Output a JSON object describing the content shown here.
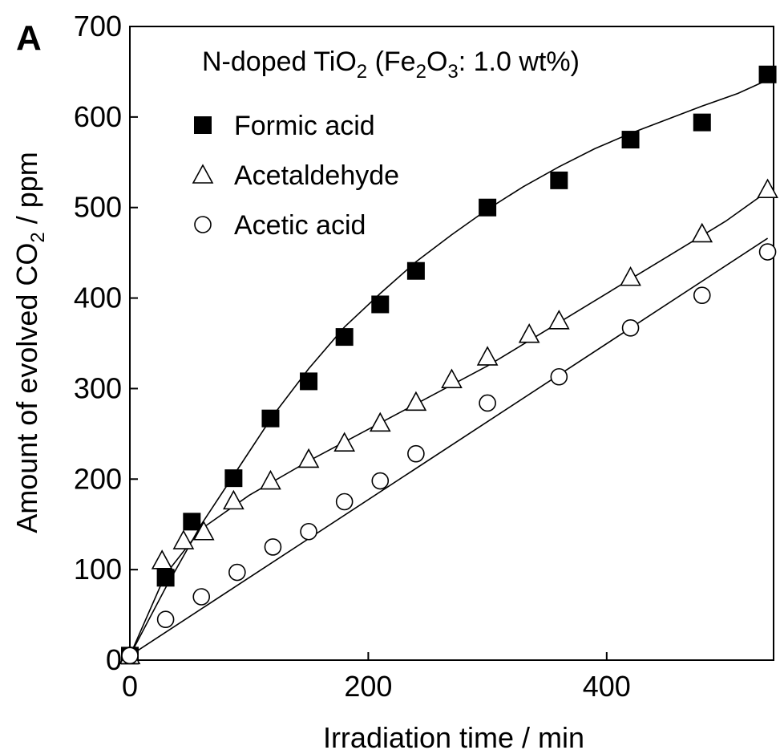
{
  "chart_data": {
    "type": "scatter",
    "panel_label": "A",
    "annotation": {
      "prefix": "N-doped TiO",
      "sub1": "2",
      "open": " (Fe",
      "sub2": "2",
      "mid": "O",
      "sub3": "3",
      "suffix": ": 1.0 wt%)"
    },
    "xlabel": "Irradiation time / min",
    "ylabel": {
      "prefix": "Amount of evolved CO",
      "sub": "2",
      "suffix": " / ppm"
    },
    "xlim": [
      0,
      540
    ],
    "ylim": [
      0,
      700
    ],
    "xticks": [
      0,
      200,
      400
    ],
    "yticks": [
      0,
      100,
      200,
      300,
      400,
      500,
      600,
      700
    ],
    "legend_position": "top-left",
    "grid": false,
    "series": [
      {
        "name": "Formic acid",
        "marker": "filled-square",
        "color": "#000000",
        "points": [
          [
            0,
            5
          ],
          [
            30,
            91
          ],
          [
            52,
            153
          ],
          [
            87,
            201
          ],
          [
            118,
            267
          ],
          [
            150,
            308
          ],
          [
            180,
            357
          ],
          [
            210,
            393
          ],
          [
            240,
            430
          ],
          [
            300,
            500
          ],
          [
            360,
            530
          ],
          [
            420,
            575
          ],
          [
            480,
            594
          ],
          [
            535,
            647
          ]
        ],
        "fit": [
          [
            0,
            5
          ],
          [
            30,
            80
          ],
          [
            60,
            150
          ],
          [
            90,
            210
          ],
          [
            120,
            270
          ],
          [
            150,
            322
          ],
          [
            180,
            368
          ],
          [
            210,
            405
          ],
          [
            240,
            440
          ],
          [
            270,
            470
          ],
          [
            300,
            498
          ],
          [
            330,
            523
          ],
          [
            360,
            545
          ],
          [
            390,
            565
          ],
          [
            420,
            582
          ],
          [
            450,
            597
          ],
          [
            480,
            612
          ],
          [
            510,
            626
          ],
          [
            535,
            641
          ]
        ]
      },
      {
        "name": "Acetaldehyde",
        "marker": "open-triangle",
        "color": "#000000",
        "points": [
          [
            0,
            5
          ],
          [
            27,
            110
          ],
          [
            45,
            132
          ],
          [
            62,
            142
          ],
          [
            87,
            176
          ],
          [
            118,
            198
          ],
          [
            150,
            222
          ],
          [
            180,
            240
          ],
          [
            210,
            262
          ],
          [
            240,
            285
          ],
          [
            270,
            310
          ],
          [
            300,
            335
          ],
          [
            335,
            360
          ],
          [
            360,
            375
          ],
          [
            420,
            423
          ],
          [
            480,
            471
          ],
          [
            535,
            520
          ]
        ],
        "fit": [
          [
            0,
            5
          ],
          [
            30,
            95
          ],
          [
            60,
            145
          ],
          [
            100,
            182
          ],
          [
            150,
            220
          ],
          [
            200,
            255
          ],
          [
            250,
            290
          ],
          [
            300,
            325
          ],
          [
            350,
            365
          ],
          [
            400,
            405
          ],
          [
            450,
            445
          ],
          [
            500,
            485
          ],
          [
            535,
            518
          ]
        ]
      },
      {
        "name": "Acetic acid",
        "marker": "open-circle",
        "color": "#000000",
        "points": [
          [
            0,
            5
          ],
          [
            30,
            45
          ],
          [
            60,
            70
          ],
          [
            90,
            97
          ],
          [
            120,
            125
          ],
          [
            150,
            142
          ],
          [
            180,
            175
          ],
          [
            210,
            198
          ],
          [
            240,
            228
          ],
          [
            300,
            284
          ],
          [
            360,
            313
          ],
          [
            420,
            367
          ],
          [
            480,
            403
          ],
          [
            535,
            451
          ]
        ],
        "fit": [
          [
            0,
            5
          ],
          [
            535,
            466
          ]
        ]
      }
    ]
  }
}
